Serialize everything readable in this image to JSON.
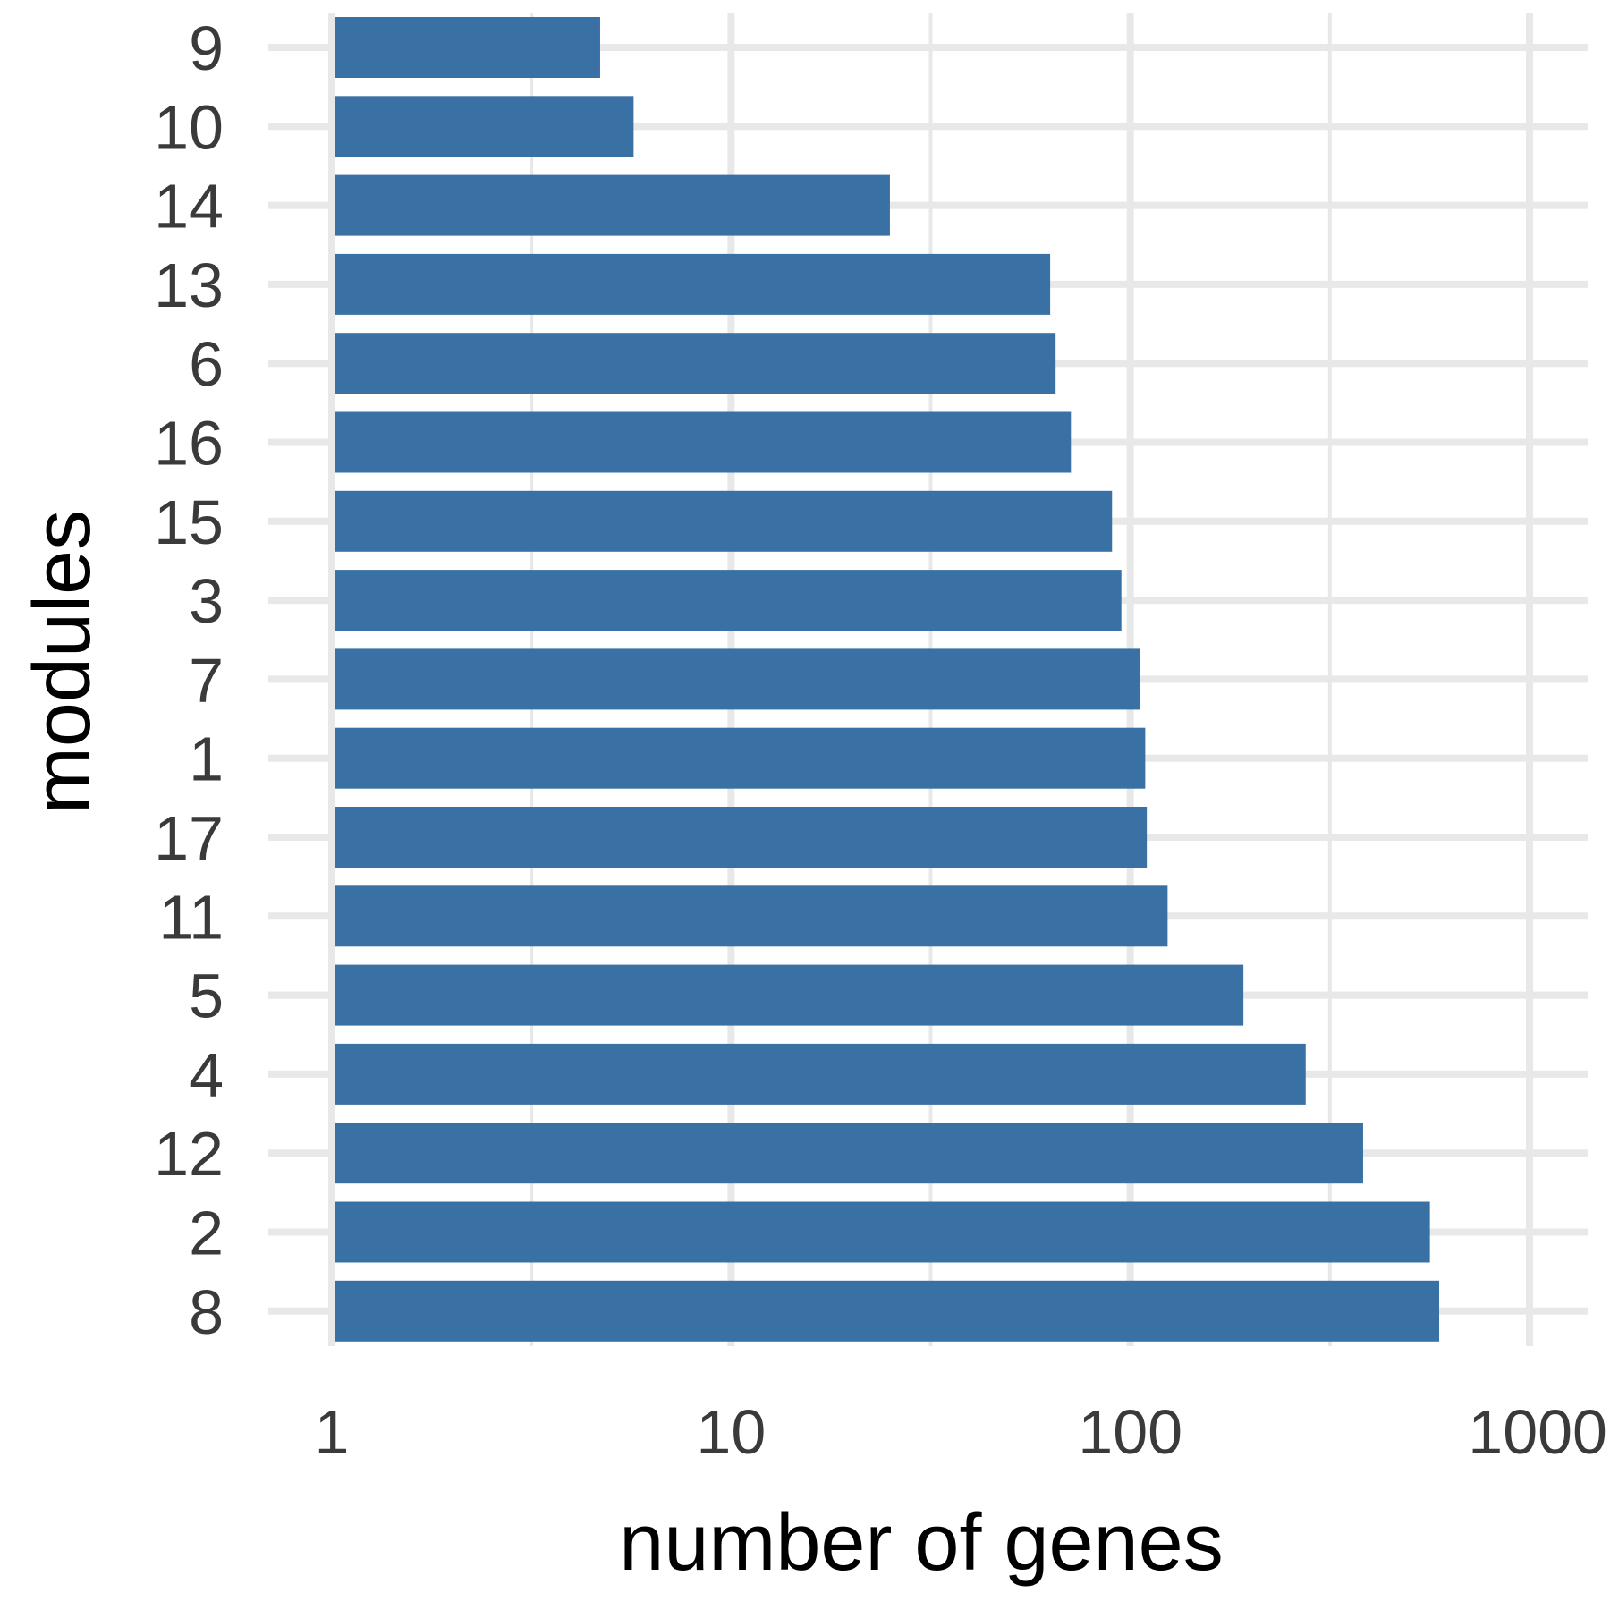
{
  "chart_data": {
    "type": "bar",
    "orientation": "horizontal",
    "xlabel": "number of genes",
    "ylabel": "modules",
    "x_scale": "log10",
    "xlim": [
      1,
      1000
    ],
    "x_ticks": [
      1,
      10,
      100,
      1000
    ],
    "x_tick_labels": [
      "1",
      "10",
      "100",
      "1000"
    ],
    "grid": true,
    "categories": [
      "9",
      "10",
      "14",
      "13",
      "6",
      "16",
      "15",
      "3",
      "7",
      "1",
      "17",
      "11",
      "5",
      "4",
      "12",
      "2",
      "8"
    ],
    "values": [
      4.7,
      5.7,
      25,
      63,
      65,
      71,
      90,
      95,
      106,
      109,
      110,
      124,
      192,
      275,
      383,
      563,
      594
    ],
    "colors": {
      "bar": "#3a71a4",
      "grid": "#e8e8e8",
      "tick_text": "#3a3a3a",
      "title_text": "#000000"
    }
  }
}
